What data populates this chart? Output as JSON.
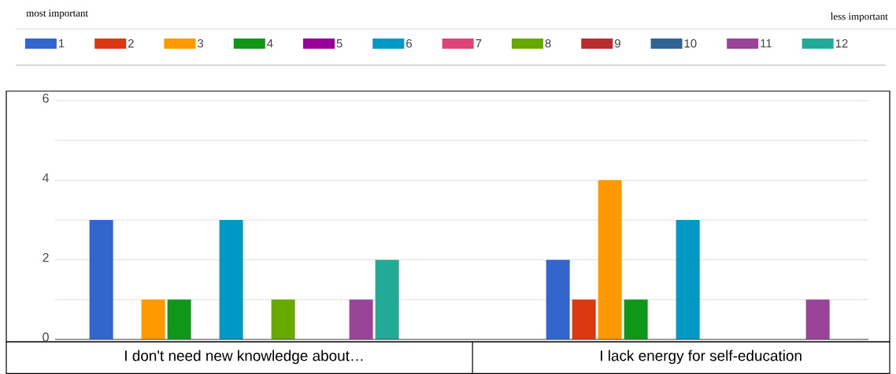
{
  "chart_data": {
    "type": "bar",
    "categories": [
      "I don't need new knowledge about…",
      "I lack energy for self-education"
    ],
    "series": [
      {
        "name": "1",
        "color": "#3366cc",
        "values": [
          3,
          2
        ]
      },
      {
        "name": "2",
        "color": "#dc3912",
        "values": [
          0,
          1
        ]
      },
      {
        "name": "3",
        "color": "#ff9900",
        "values": [
          1,
          4
        ]
      },
      {
        "name": "4",
        "color": "#109618",
        "values": [
          1,
          1
        ]
      },
      {
        "name": "5",
        "color": "#990099",
        "values": [
          0,
          0
        ]
      },
      {
        "name": "6",
        "color": "#0099c6",
        "values": [
          3,
          3
        ]
      },
      {
        "name": "7",
        "color": "#dd4477",
        "values": [
          0,
          0
        ]
      },
      {
        "name": "8",
        "color": "#66aa00",
        "values": [
          1,
          0
        ]
      },
      {
        "name": "9",
        "color": "#b82e2e",
        "values": [
          0,
          0
        ]
      },
      {
        "name": "10",
        "color": "#316395",
        "values": [
          0,
          0
        ]
      },
      {
        "name": "11",
        "color": "#994499",
        "values": [
          1,
          1
        ]
      },
      {
        "name": "12",
        "color": "#22aa99",
        "values": [
          2,
          0
        ]
      }
    ],
    "ylim": [
      0,
      6
    ],
    "yticks": [
      0,
      {
        "value": 1,
        "label": null
      },
      2,
      {
        "value": 3,
        "label": null
      },
      4,
      {
        "value": 5,
        "label": null
      },
      6
    ],
    "grid": "y",
    "legend": "top",
    "annotations": [
      "most important",
      "less important"
    ]
  }
}
